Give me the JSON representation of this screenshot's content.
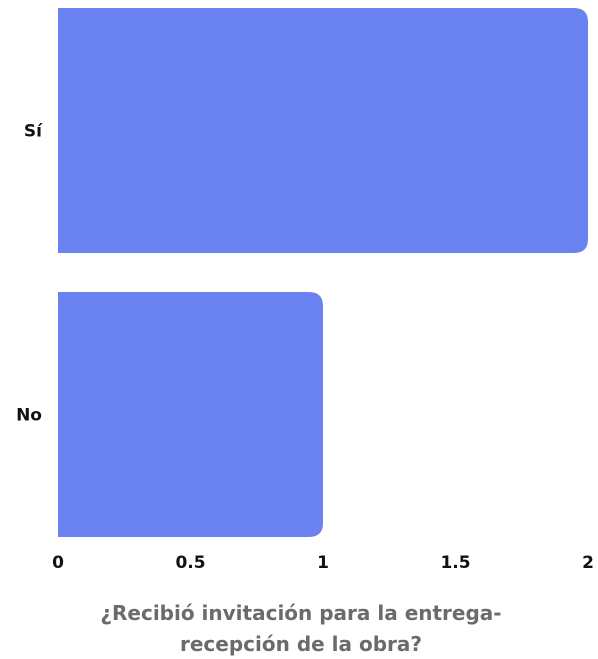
{
  "chart_data": {
    "type": "bar",
    "orientation": "horizontal",
    "categories": [
      "Sí",
      "No"
    ],
    "values": [
      2,
      1
    ],
    "xlim": [
      0,
      2
    ],
    "xticks": [
      "0",
      "0.5",
      "1",
      "1.5",
      "2"
    ],
    "xtick_values": [
      0,
      0.5,
      1,
      1.5,
      2
    ],
    "title_lines": [
      "¿Recibió invitación para la entrega-",
      "recepción de la obra?"
    ],
    "grid": false,
    "legend": "none",
    "bar_color": "#6a82ef"
  }
}
